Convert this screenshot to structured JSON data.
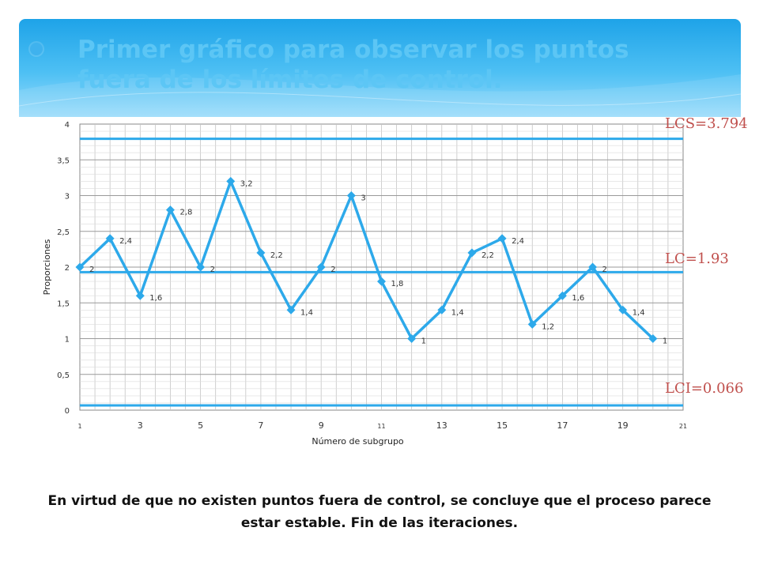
{
  "slide": {
    "title": "Primer gráfico para observar los puntos fuera de los límites de control.",
    "footer": "En virtud de que no existen puntos fuera de control, se concluye que el proceso parece estar estable. Fin de las iteraciones.",
    "colors": {
      "header": "#1ea3e8",
      "title": "#5cc6f5",
      "series": "#2da9ea",
      "limit_labels": "#c0504d"
    }
  },
  "chart_data": {
    "type": "line",
    "xlabel": "Número de subgrupo",
    "ylabel": "Proporciones",
    "x": [
      1,
      2,
      3,
      4,
      5,
      6,
      7,
      8,
      9,
      10,
      11,
      12,
      13,
      14,
      15,
      16,
      17,
      18,
      19,
      20
    ],
    "series": [
      {
        "values": [
          2,
          2.4,
          1.6,
          2.8,
          2,
          3.2,
          2.2,
          1.4,
          2,
          3,
          1.8,
          1,
          1.4,
          2.2,
          2.4,
          1.2,
          1.6,
          2,
          1.4,
          1
        ],
        "labels": [
          "2",
          "2,4",
          "1,6",
          "2,8",
          "2",
          "3,2",
          "2,2",
          "1,4",
          "2",
          "3",
          "1,8",
          "1",
          "1,4",
          "2,2",
          "2,4",
          "1,2",
          "1,6",
          "2",
          "1,4",
          "1"
        ]
      }
    ],
    "xlim": [
      1,
      21
    ],
    "ylim": [
      0,
      4
    ],
    "x_ticks": [
      "1",
      "3",
      "5",
      "7",
      "9",
      "11",
      "13",
      "15",
      "17",
      "19",
      "21"
    ],
    "y_ticks": [
      "0",
      "0,5",
      "1",
      "1,5",
      "2",
      "2,5",
      "3",
      "3,5",
      "4"
    ],
    "grid": true,
    "limits": [
      {
        "label": "LCS=3.794",
        "value": 3.794
      },
      {
        "label": "LC=1.93",
        "value": 1.93
      },
      {
        "label": "LCI=0.066",
        "value": 0.066
      }
    ]
  }
}
